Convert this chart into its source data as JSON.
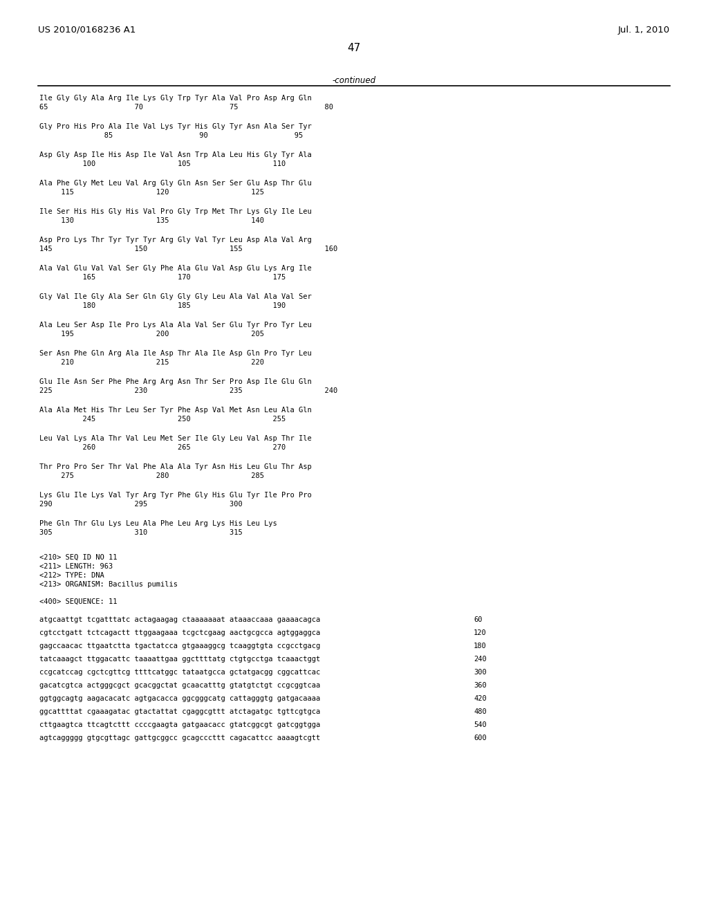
{
  "header_left": "US 2010/0168236 A1",
  "header_right": "Jul. 1, 2010",
  "page_number": "47",
  "continued_label": "-continued",
  "background_color": "#ffffff",
  "text_color": "#000000",
  "sequence_data": [
    [
      "Ile Gly Gly Ala Arg Ile Lys Gly Trp Tyr Ala Val Pro Asp Arg Gln",
      "65                    70                    75                    80"
    ],
    [
      "Gly Pro His Pro Ala Ile Val Lys Tyr His Gly Tyr Asn Ala Ser Tyr",
      "               85                    90                    95"
    ],
    [
      "Asp Gly Asp Ile His Asp Ile Val Asn Trp Ala Leu His Gly Tyr Ala",
      "          100                   105                   110"
    ],
    [
      "Ala Phe Gly Met Leu Val Arg Gly Gln Asn Ser Ser Glu Asp Thr Glu",
      "     115                   120                   125"
    ],
    [
      "Ile Ser His His Gly His Val Pro Gly Trp Met Thr Lys Gly Ile Leu",
      "     130                   135                   140"
    ],
    [
      "Asp Pro Lys Thr Tyr Tyr Tyr Arg Gly Val Tyr Leu Asp Ala Val Arg",
      "145                   150                   155                   160"
    ],
    [
      "Ala Val Glu Val Val Ser Gly Phe Ala Glu Val Asp Glu Lys Arg Ile",
      "          165                   170                   175"
    ],
    [
      "Gly Val Ile Gly Ala Ser Gln Gly Gly Gly Leu Ala Val Ala Val Ser",
      "          180                   185                   190"
    ],
    [
      "Ala Leu Ser Asp Ile Pro Lys Ala Ala Val Ser Glu Tyr Pro Tyr Leu",
      "     195                   200                   205"
    ],
    [
      "Ser Asn Phe Gln Arg Ala Ile Asp Thr Ala Ile Asp Gln Pro Tyr Leu",
      "     210                   215                   220"
    ],
    [
      "Glu Ile Asn Ser Phe Phe Arg Arg Asn Thr Ser Pro Asp Ile Glu Gln",
      "225                   230                   235                   240"
    ],
    [
      "Ala Ala Met His Thr Leu Ser Tyr Phe Asp Val Met Asn Leu Ala Gln",
      "          245                   250                   255"
    ],
    [
      "Leu Val Lys Ala Thr Val Leu Met Ser Ile Gly Leu Val Asp Thr Ile",
      "          260                   265                   270"
    ],
    [
      "Thr Pro Pro Ser Thr Val Phe Ala Ala Tyr Asn His Leu Glu Thr Asp",
      "     275                   280                   285"
    ],
    [
      "Lys Glu Ile Lys Val Tyr Arg Tyr Phe Gly His Glu Tyr Ile Pro Pro",
      "290                   295                   300"
    ],
    [
      "Phe Gln Thr Glu Lys Leu Ala Phe Leu Arg Lys His Leu Lys",
      "305                   310                   315"
    ]
  ],
  "metadata_lines": [
    "<210> SEQ ID NO 11",
    "<211> LENGTH: 963",
    "<212> TYPE: DNA",
    "<213> ORGANISM: Bacillus pumilis"
  ],
  "sequence_label": "<400> SEQUENCE: 11",
  "dna_lines": [
    [
      "atgcaattgt tcgatttatc actagaagag ctaaaaaaat ataaaccaaa gaaaacagca",
      "60"
    ],
    [
      "cgtcctgatt tctcagactt ttggaagaaa tcgctcgaag aactgcgcca agtggaggca",
      "120"
    ],
    [
      "gagccaacac ttgaatctta tgactatcca gtgaaaggcg tcaaggtgta ccgcctgacg",
      "180"
    ],
    [
      "tatcaaagct ttggacattc taaaattgaa ggcttttatg ctgtgcctga tcaaactggt",
      "240"
    ],
    [
      "ccgcatccag cgctcgttcg ttttcatggc tataatgcca gctatgacgg cggcattcac",
      "300"
    ],
    [
      "gacatcgtca actgggcgct gcacggctat gcaacatttg gtatgtctgt ccgcggtcaa",
      "360"
    ],
    [
      "ggtggcagtg aagacacatc agtgacacca ggcgggcatg cattagggtg gatgacaaaa",
      "420"
    ],
    [
      "ggcattttat cgaaagatac gtactattat cgaggcgttt atctagatgc tgttcgtgca",
      "480"
    ],
    [
      "cttgaagtca ttcagtcttt ccccgaagta gatgaacacc gtatcggcgt gatcggtgga",
      "540"
    ],
    [
      "agtcaggggg gtgcgttagc gattgcggcc gcagcccttt cagacattcc aaaagtcgtt",
      "600"
    ]
  ]
}
